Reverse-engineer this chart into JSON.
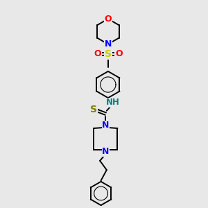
{
  "background_color": "#e8e8e8",
  "bond_color": "#000000",
  "atom_colors": {
    "O": "#ff0000",
    "N": "#0000ff",
    "S_sulfonyl": "#cccc00",
    "S_thio": "#808000",
    "NH": "#008080",
    "C": "#000000"
  },
  "figsize": [
    3.0,
    3.0
  ],
  "dpi": 100,
  "lw": 1.4
}
